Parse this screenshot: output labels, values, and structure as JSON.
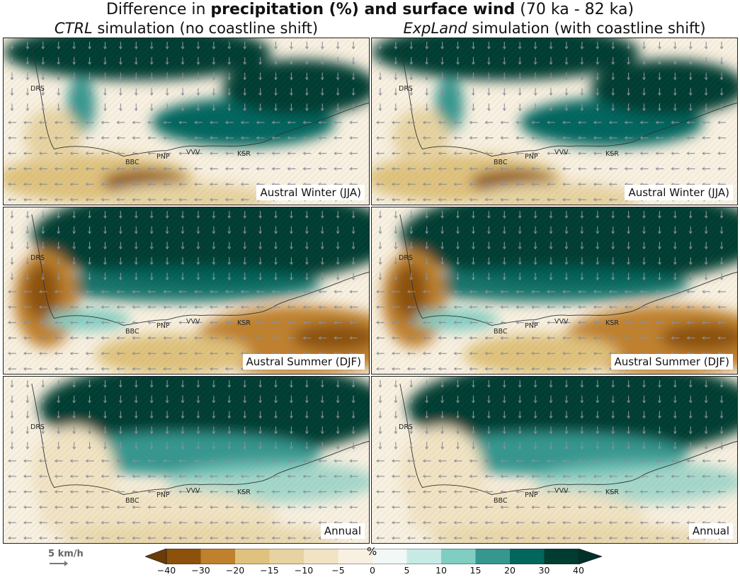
{
  "title": {
    "prefix": "Difference in ",
    "bold": "precipitation (%) and surface wind",
    "suffix": " (70 ka - 82 ka)"
  },
  "columns": [
    {
      "name": "CTRL",
      "rest": " simulation (no coastline shift)"
    },
    {
      "name": "ExpLand",
      "rest": " simulation (with coastline shift)"
    }
  ],
  "rows": [
    "Austral Winter (JJA)",
    "Austral Summer (DJF)",
    "Annual"
  ],
  "places": [
    "DRS",
    "BBC",
    "PNP",
    "VVV",
    "KSR"
  ],
  "wind_scale": {
    "label": "5 km/h",
    "value": 5,
    "unit": "km/h"
  },
  "colorbar": {
    "unit": "%",
    "ticks": [
      "−40",
      "−30",
      "−20",
      "−15",
      "−10",
      "−5",
      "0",
      "5",
      "10",
      "15",
      "20",
      "30",
      "40"
    ],
    "colors": [
      "#8c510a",
      "#bf812d",
      "#dfc27d",
      "#e7d3a1",
      "#f1e3c3",
      "#f8f0e0",
      "#f2f8f6",
      "#c7eae5",
      "#80cdc1",
      "#35978f",
      "#01665e",
      "#003c30"
    ],
    "extend_low": "#6b3c07",
    "extend_high": "#00302a"
  }
}
